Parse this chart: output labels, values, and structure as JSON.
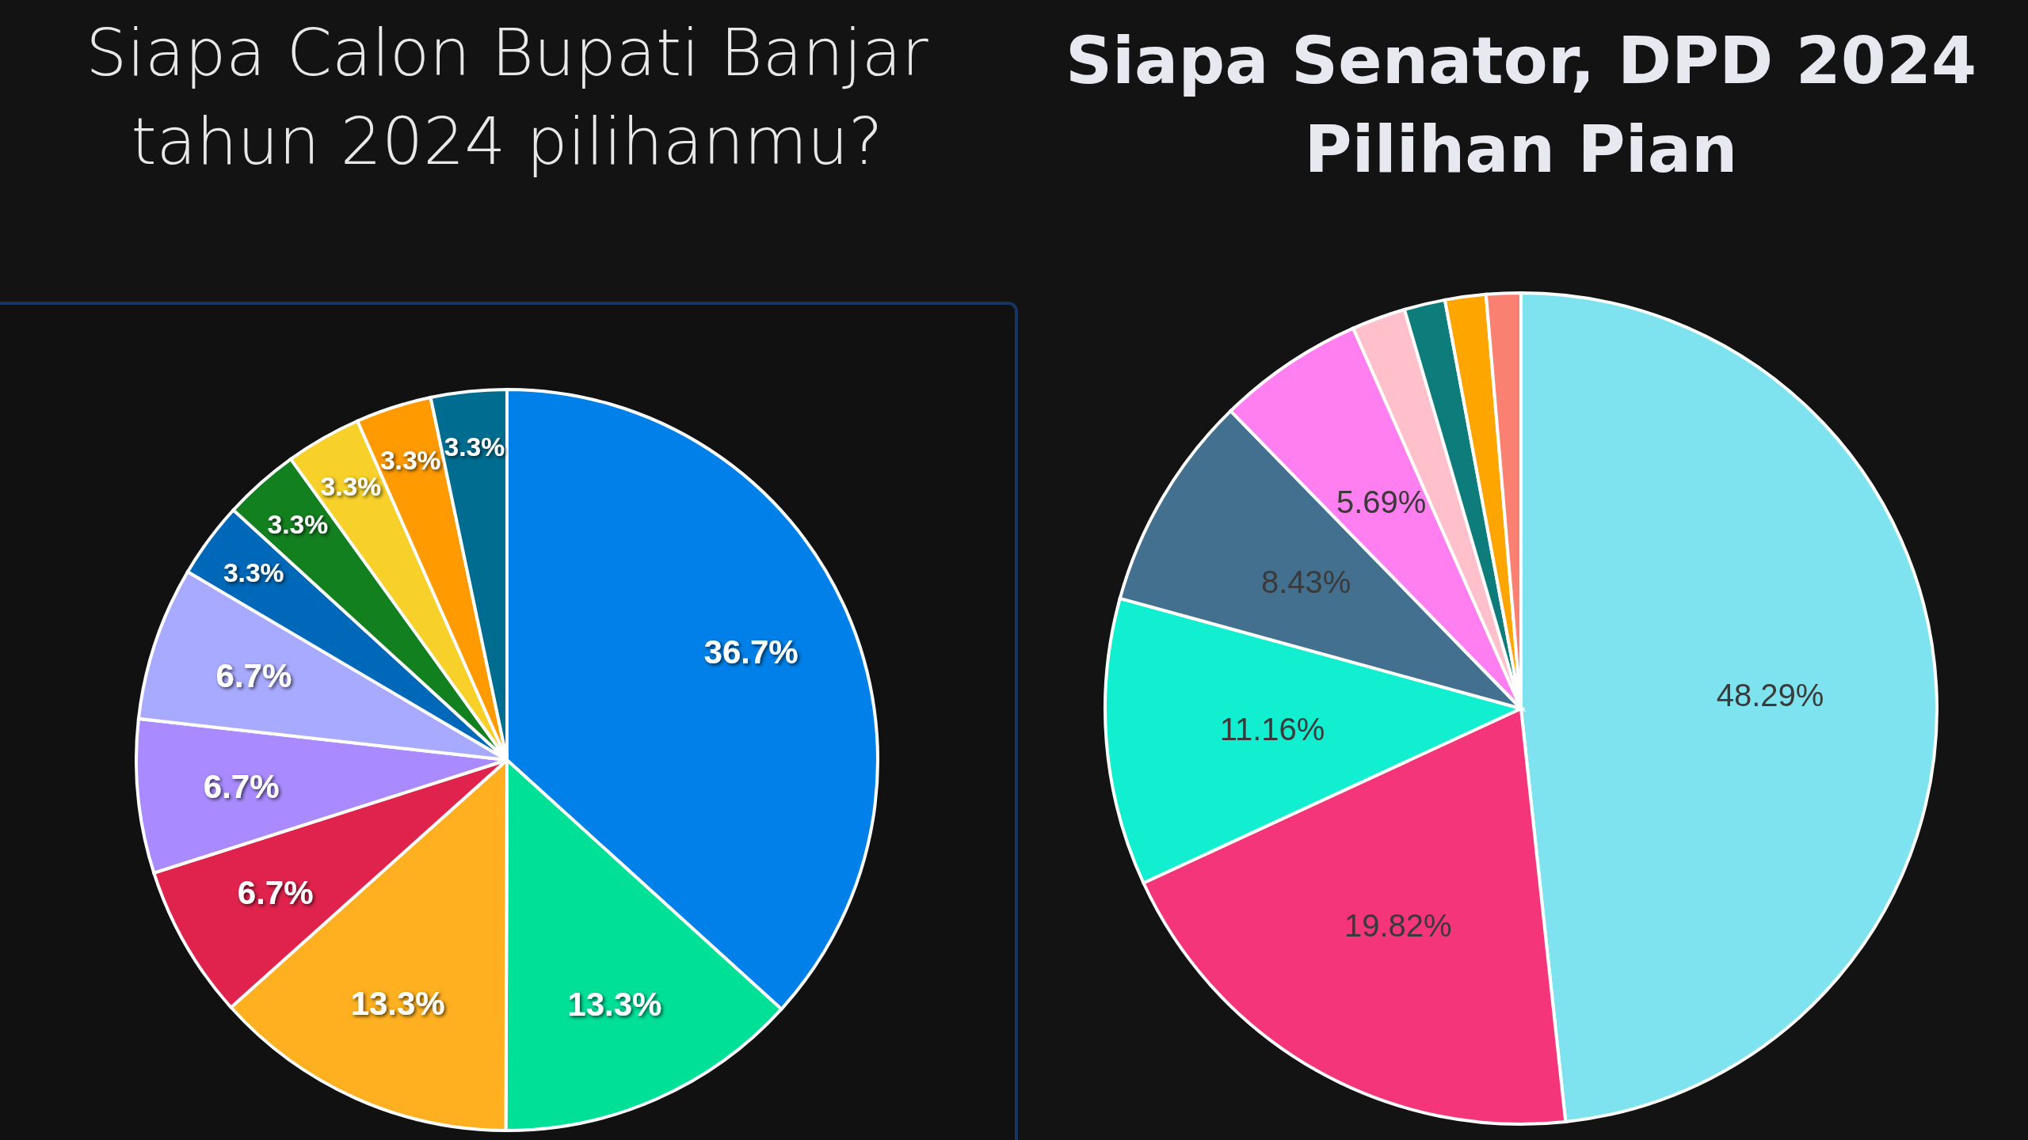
{
  "chart_data": [
    {
      "type": "pie",
      "title": "Siapa Calon Bupati Banjar tahun 2024 pilihanmu?",
      "categories": [
        null,
        null,
        null,
        null,
        null,
        null,
        null,
        null,
        null,
        null,
        null
      ],
      "values": [
        36.7,
        13.3,
        13.3,
        6.7,
        6.7,
        6.7,
        3.3,
        3.3,
        3.3,
        3.3,
        3.3
      ],
      "colors": [
        "#0080e8",
        "#00e097",
        "#ffb020",
        "#e0234d",
        "#a98bff",
        "#a8aaff",
        "#0068b8",
        "#13801f",
        "#f7d02a",
        "#ff9a00",
        "#006c8f"
      ],
      "value_labels": [
        "36.7%",
        "13.3%",
        "13.3%",
        "6.7%",
        "6.7%",
        "6.7%",
        "3.3%",
        "3.3%",
        "3.3%",
        "3.3%",
        "3.3%"
      ]
    },
    {
      "type": "pie",
      "title": "Siapa Senator, DPD 2024 Pilihan Pian",
      "categories": [
        null,
        null,
        null,
        null,
        null,
        null,
        null,
        null,
        null
      ],
      "values": [
        48.29,
        19.82,
        11.16,
        8.43,
        5.69,
        2.09,
        1.59,
        1.59,
        1.34
      ],
      "colors": [
        "#7fe3ef",
        "#f5357a",
        "#12efd0",
        "#43708f",
        "#ff7ff0",
        "#ffc0cb",
        "#0e7c7b",
        "#ffa500",
        "#fa8072"
      ],
      "value_labels": [
        "48.29%",
        "19.82%",
        "11.16%",
        "8.43%",
        "5.69%",
        null,
        null,
        null,
        null
      ]
    }
  ]
}
